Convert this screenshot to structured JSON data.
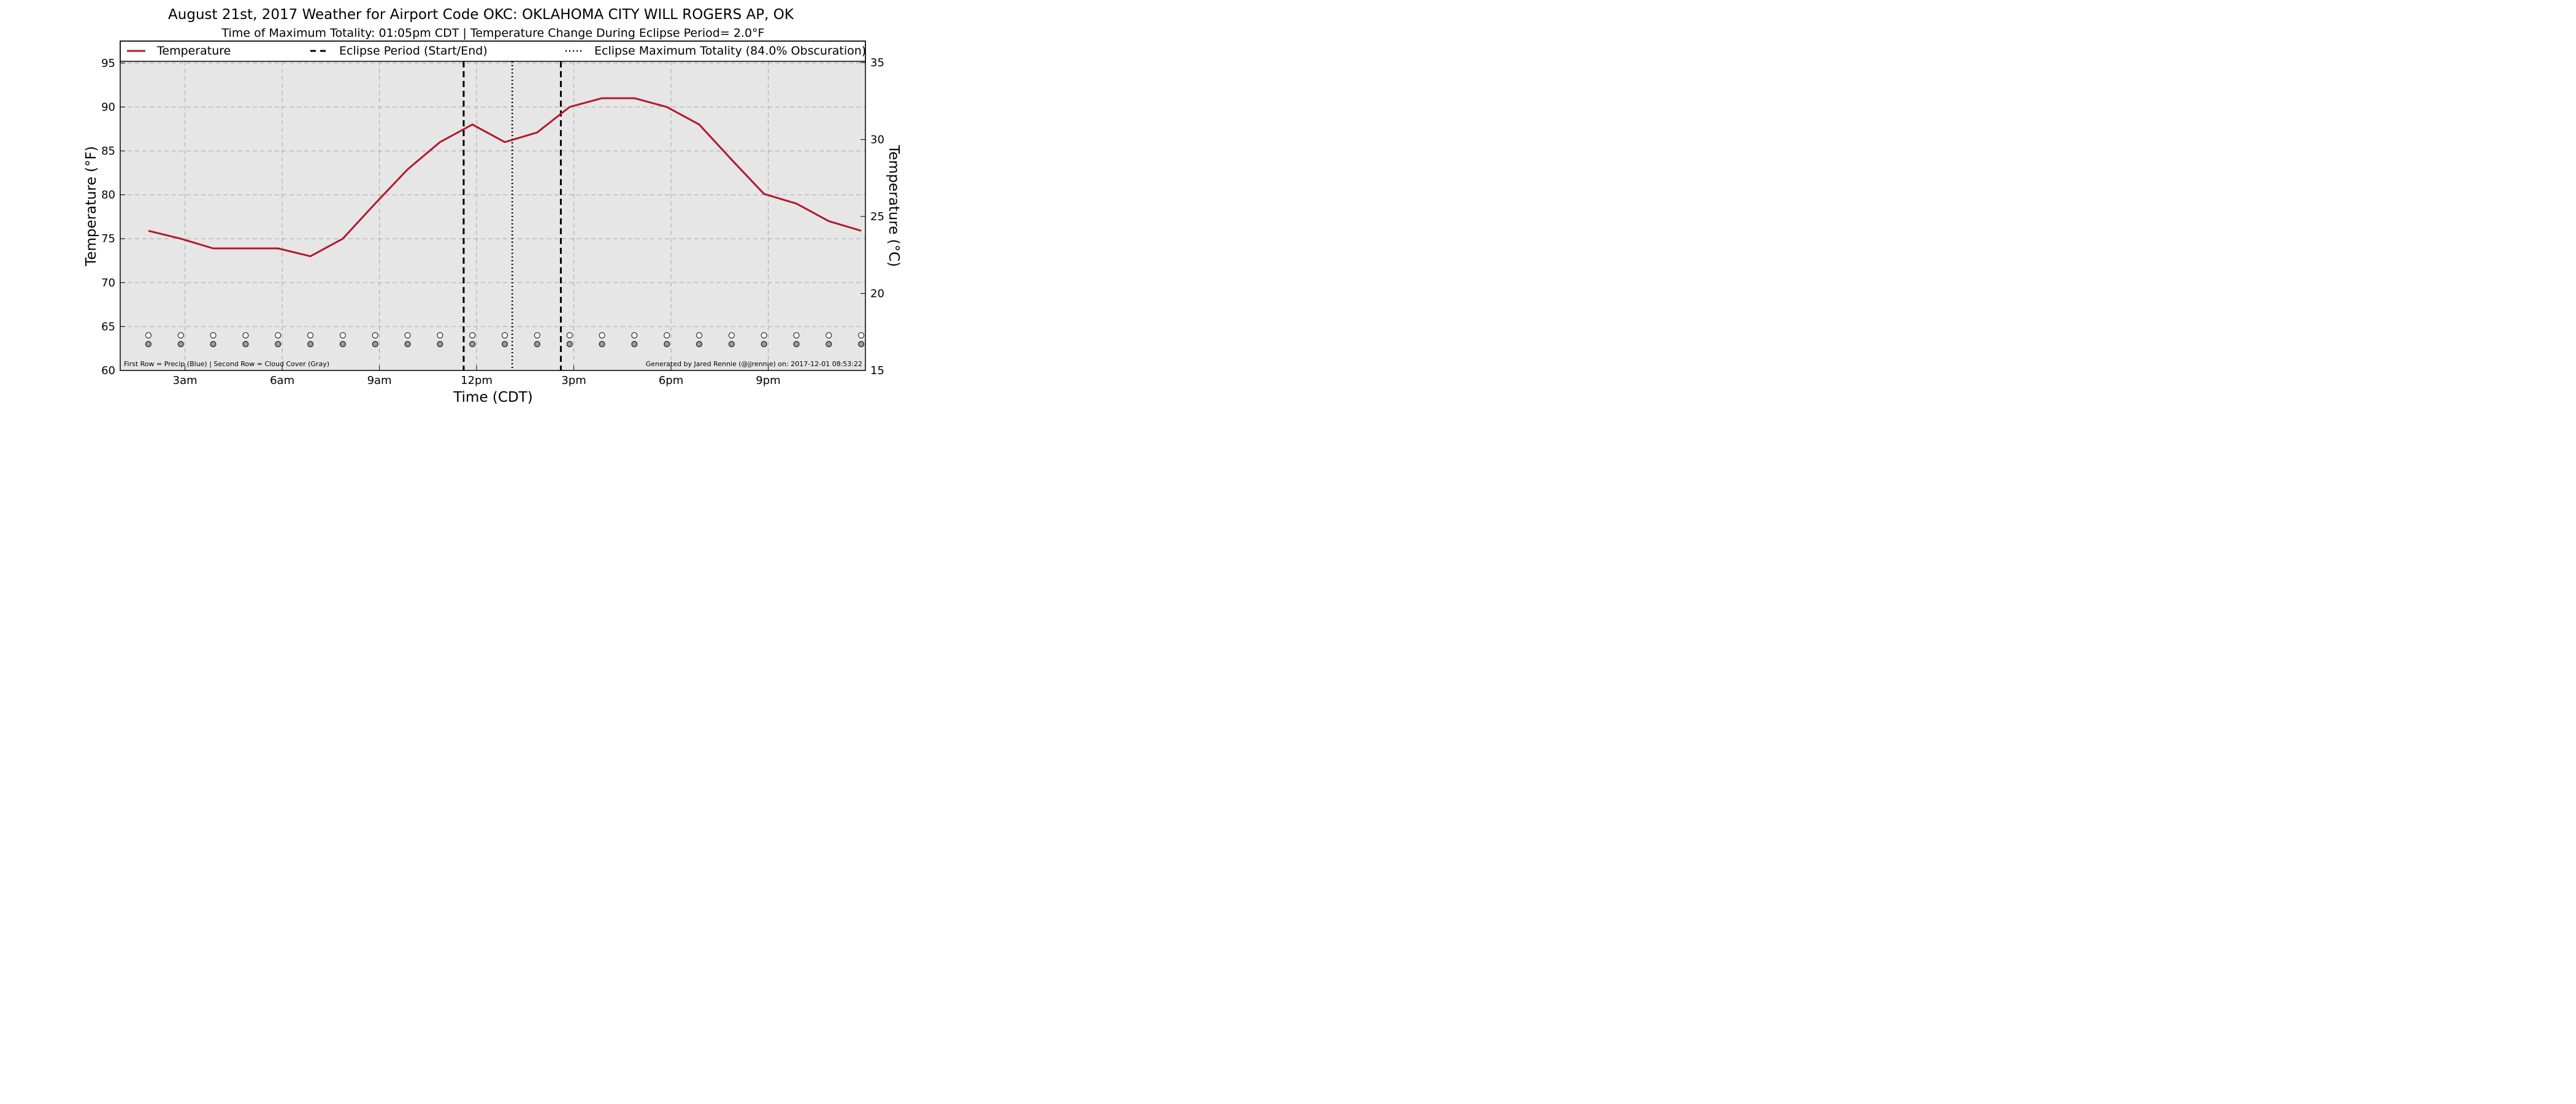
{
  "chart_data": {
    "type": "line",
    "title": "August 21st, 2017 Weather for Airport Code OKC: OKLAHOMA CITY  WILL ROGERS  AP, OK",
    "subtitle": "Time of Maximum Totality: 01:05pm CDT | Temperature Change During Eclipse Period= 2.0°F",
    "xlabel": "Time (CDT)",
    "ylabel": "Temperature (°F)",
    "ylabel_right": "Temperature (°C)",
    "xlim": [
      1.0,
      24.0
    ],
    "ylim": [
      60,
      97.5
    ],
    "ylim_right": [
      15,
      36.39
    ],
    "x_ticks": [
      {
        "x": 3,
        "label": "3am"
      },
      {
        "x": 6,
        "label": "6am"
      },
      {
        "x": 9,
        "label": "9am"
      },
      {
        "x": 12,
        "label": "12pm"
      },
      {
        "x": 15,
        "label": "3pm"
      },
      {
        "x": 18,
        "label": "6pm"
      },
      {
        "x": 21,
        "label": "9pm"
      }
    ],
    "y_ticks": [
      60,
      65,
      70,
      75,
      80,
      85,
      90,
      95
    ],
    "y_ticks_right": [
      15,
      20,
      25,
      30,
      35
    ],
    "grid": true,
    "legend_position": "top",
    "legend": [
      {
        "label": "Temperature",
        "style": "solid"
      },
      {
        "label": "Eclipse Period (Start/End)",
        "style": "dashed"
      },
      {
        "label": "Eclipse Maximum Totality (84.0% Obscuration)",
        "style": "dotted"
      }
    ],
    "series": [
      {
        "name": "Temperature",
        "color": "#b2182b",
        "x": [
          1.87,
          2.87,
          3.87,
          4.87,
          5.87,
          6.87,
          7.87,
          8.87,
          9.87,
          10.87,
          11.87,
          12.87,
          13.87,
          14.87,
          15.87,
          16.87,
          17.87,
          18.87,
          19.87,
          20.87,
          21.87,
          22.87,
          23.87
        ],
        "y": [
          75.9,
          75.0,
          73.9,
          73.9,
          73.9,
          73.0,
          75.0,
          79.0,
          82.9,
          86.0,
          88.0,
          86.0,
          87.1,
          90.0,
          91.0,
          91.0,
          90.0,
          88.0,
          84.0,
          80.1,
          79.0,
          77.0,
          75.9
        ]
      }
    ],
    "vlines": [
      {
        "x": 11.6,
        "style": "dashed",
        "label": "Eclipse Period (Start/End)"
      },
      {
        "x": 13.1,
        "style": "dotted",
        "label": "Eclipse Maximum Totality (84.0% Obscuration)"
      },
      {
        "x": 14.6,
        "style": "dashed",
        "label": "Eclipse Period (Start/End)"
      }
    ],
    "markers": {
      "x": [
        1.87,
        2.87,
        3.87,
        4.87,
        5.87,
        6.87,
        7.87,
        8.87,
        9.87,
        10.87,
        11.87,
        12.87,
        13.87,
        14.87,
        15.87,
        16.87,
        17.87,
        18.87,
        19.87,
        20.87,
        21.87,
        22.87,
        23.87
      ],
      "precip_y": 64,
      "cloud_y": 63,
      "precip_color": "#ffffff",
      "cloud_color": "#999999"
    },
    "footnote_left": "First Row = Precip (Blue) | Second Row = Cloud Cover (Gray)",
    "footnote_right": "Generated by Jared Rennie (@jjrennie) on: 2017-12-01 08:53:22",
    "background_color": "#e6e6e6",
    "line_color": "#b2182b"
  }
}
